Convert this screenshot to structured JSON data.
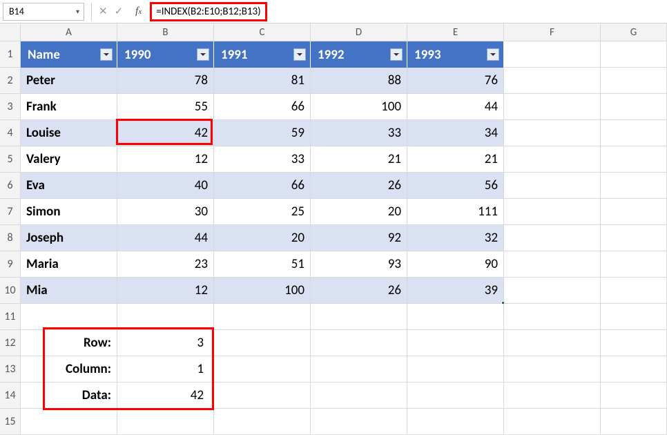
{
  "formula_bar": {
    "cell_ref": "B14",
    "formula": "=INDEX(B2:E10;B12;B13)"
  },
  "columns": [
    "A",
    "B",
    "C",
    "D",
    "E",
    "F",
    "G"
  ],
  "row_numbers": [
    1,
    2,
    3,
    4,
    5,
    6,
    7,
    8,
    9,
    10,
    11,
    12,
    13,
    14,
    15
  ],
  "table": {
    "header_bg": "#4472c4",
    "band_colors": [
      "#d9e1f2",
      "#ffffff"
    ],
    "headers": [
      "Name",
      "1990",
      "1991",
      "1992",
      "1993"
    ],
    "rows": [
      {
        "name": "Peter",
        "vals": [
          78,
          81,
          88,
          76
        ]
      },
      {
        "name": "Frank",
        "vals": [
          55,
          66,
          100,
          44
        ]
      },
      {
        "name": "Louise",
        "vals": [
          42,
          59,
          33,
          34
        ]
      },
      {
        "name": "Valery",
        "vals": [
          12,
          33,
          21,
          21
        ]
      },
      {
        "name": "Eva",
        "vals": [
          40,
          66,
          26,
          56
        ]
      },
      {
        "name": "Simon",
        "vals": [
          30,
          25,
          20,
          111
        ]
      },
      {
        "name": "Joseph",
        "vals": [
          44,
          20,
          92,
          32
        ]
      },
      {
        "name": "Maria",
        "vals": [
          23,
          51,
          93,
          90
        ]
      },
      {
        "name": "Mia",
        "vals": [
          12,
          100,
          26,
          39
        ]
      }
    ]
  },
  "summary": {
    "row_label": "Row:",
    "row_value": 3,
    "col_label": "Column:",
    "col_value": 1,
    "data_label": "Data:",
    "data_value": 42
  },
  "highlight": {
    "red": "#ff0000"
  }
}
